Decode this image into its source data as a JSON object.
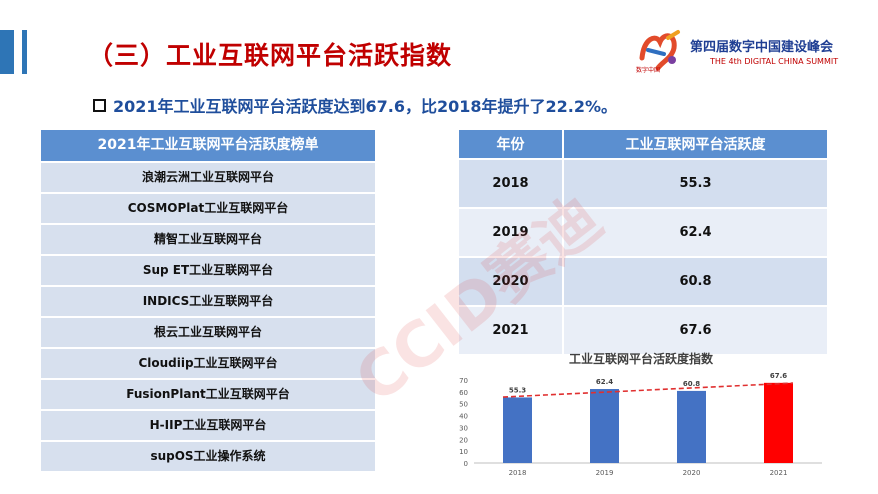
{
  "header": {
    "title": "（三）工业互联网平台活跃指数",
    "logo": {
      "name": "第四届数字中国建设峰会",
      "subtitle": "THE 4th DIGITAL CHINA SUMMIT",
      "mark_text": "数字中国"
    }
  },
  "headline": "2021年工业互联网平台活跃度达到67.6，比2018年提升了22.2%。",
  "ranking": {
    "title": "2021年工业互联网平台活跃度榜单",
    "items": [
      "浪潮云洲工业互联网平台",
      "COSMOPlat工业互联网平台",
      "精智工业互联网平台",
      "Sup ET工业互联网平台",
      "INDICS工业互联网平台",
      "根云工业互联网平台",
      "Cloudiip工业互联网平台",
      "FusionPlant工业互联网平台",
      "H-IIP工业互联网平台",
      "supOS工业操作系统"
    ]
  },
  "table": {
    "headers": [
      "年份",
      "工业互联网平台活跃度"
    ],
    "rows": [
      {
        "year": "2018",
        "value": "55.3"
      },
      {
        "year": "2019",
        "value": "62.4"
      },
      {
        "year": "2020",
        "value": "60.8"
      },
      {
        "year": "2021",
        "value": "67.6"
      }
    ]
  },
  "watermark": "CCID赛迪",
  "colors": {
    "title": "#c00000",
    "headline": "#1f4e9c",
    "header_fill": "#5b8fd0",
    "bar": "#4472c4",
    "bar_highlight": "#ff0000",
    "trend": "#e03030"
  },
  "chart_data": {
    "type": "bar",
    "title": "工业互联网平台活跃度指数",
    "categories": [
      "2018",
      "2019",
      "2020",
      "2021"
    ],
    "values": [
      55.3,
      62.4,
      60.8,
      67.6
    ],
    "ylim": [
      0,
      70
    ],
    "yticks": [
      0,
      10,
      20,
      30,
      40,
      50,
      60,
      70
    ],
    "trendline": true,
    "highlight_index": 3,
    "data_labels": true,
    "legend": "none"
  }
}
